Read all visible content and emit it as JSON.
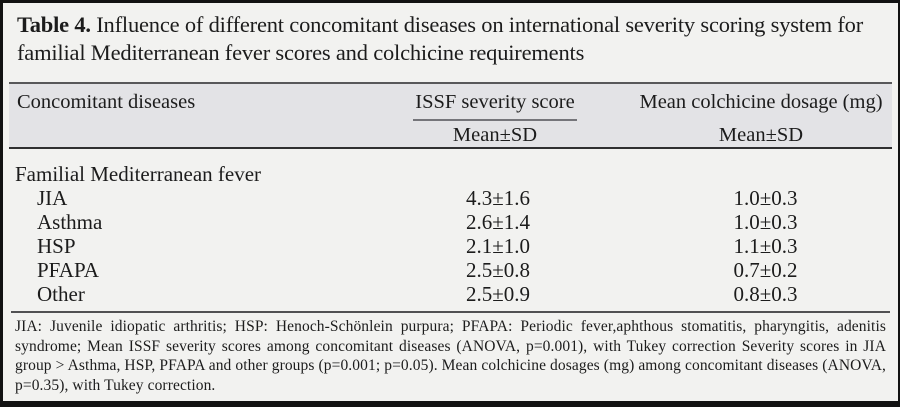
{
  "title": {
    "label": "Table 4.",
    "text": " Influence of different concomitant diseases on international severity scoring system for familial Mediterranean fever scores and colchicine requirements"
  },
  "table": {
    "columns": {
      "diseases": "Concomitant diseases",
      "issf": "ISSF severity score",
      "dosage": "Mean colchicine dosage (mg)",
      "issf_sub": "Mean±SD",
      "dosage_sub": "Mean±SD"
    },
    "group_row": "Familial Mediterranean fever",
    "rows": [
      {
        "label": "JIA",
        "issf": "4.3±1.6",
        "dosage": "1.0±0.3"
      },
      {
        "label": "Asthma",
        "issf": "2.6±1.4",
        "dosage": "1.0±0.3"
      },
      {
        "label": "HSP",
        "issf": "2.1±1.0",
        "dosage": "1.1±0.3"
      },
      {
        "label": "PFAPA",
        "issf": "2.5±0.8",
        "dosage": "0.7±0.2"
      },
      {
        "label": "Other",
        "issf": "2.5±0.9",
        "dosage": "0.8±0.3"
      }
    ]
  },
  "footnote": "JIA: Juvenile idiopatic arthritis; HSP: Henoch-Schönlein purpura; PFAPA: Periodic fever,aphthous stomatitis, pharyngitis, adenitis syndrome; Mean ISSF severity scores among concomitant diseases (ANOVA, p=0.001), with Tukey correction Severity scores in JIA group > Asthma, HSP, PFAPA and other groups (p=0.001; p=0.05). Mean colchicine dosages (mg) among concomitant diseases (ANOVA, p=0.35), with Tukey correction.",
  "colors": {
    "page_background": "#f2f2f0",
    "header_band_background": "#e3e3e6",
    "text": "#1c1c1c",
    "outer_border": "#121212"
  }
}
